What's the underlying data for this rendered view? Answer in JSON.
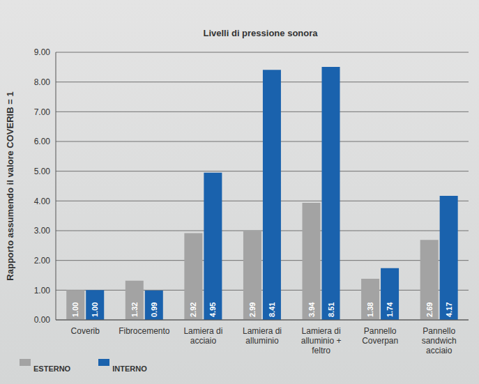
{
  "chart_data": {
    "type": "bar",
    "title": "Livelli di pressione sonora",
    "y_label": "Rapporto assumendo il valore COVERIB = 1",
    "categories": [
      "Coverib",
      "Fibrocemento",
      "Lamiera di acciaio",
      "Lamiera di alluminio",
      "Lamiera di alluminio + feltro",
      "Pannello Coverpan",
      "Pannello sandwich acciaio"
    ],
    "series": [
      {
        "name": "ESTERNO",
        "color": "#a3a3a3",
        "values": [
          1.0,
          1.32,
          2.92,
          2.99,
          3.94,
          1.38,
          2.69
        ],
        "value_labels": [
          "1.00",
          "1.32",
          "2.92",
          "2.99",
          "3.94",
          "1.38",
          "2.69"
        ]
      },
      {
        "name": "INTERNO",
        "color": "#1a62ad",
        "values": [
          1.0,
          0.99,
          4.95,
          8.41,
          8.51,
          1.74,
          4.17
        ],
        "value_labels": [
          "1.00",
          "0.99",
          "4.95",
          "8.41",
          "8.51",
          "1.74",
          "4.17"
        ]
      }
    ],
    "ylim": [
      0,
      9
    ],
    "yticks": [
      {
        "value": 0,
        "label": "0.00"
      },
      {
        "value": 1,
        "label": "1.00"
      },
      {
        "value": 2,
        "label": "2.00"
      },
      {
        "value": 3,
        "label": "3.00"
      },
      {
        "value": 4,
        "label": "4.00"
      },
      {
        "value": 5,
        "label": "5.00"
      },
      {
        "value": 6,
        "label": "6.00"
      },
      {
        "value": 7,
        "label": "7.00"
      },
      {
        "value": 8,
        "label": "8.00"
      },
      {
        "value": 9,
        "label": "9.00"
      }
    ],
    "grid": true,
    "legend": "bottom-left",
    "data_labels": true
  }
}
